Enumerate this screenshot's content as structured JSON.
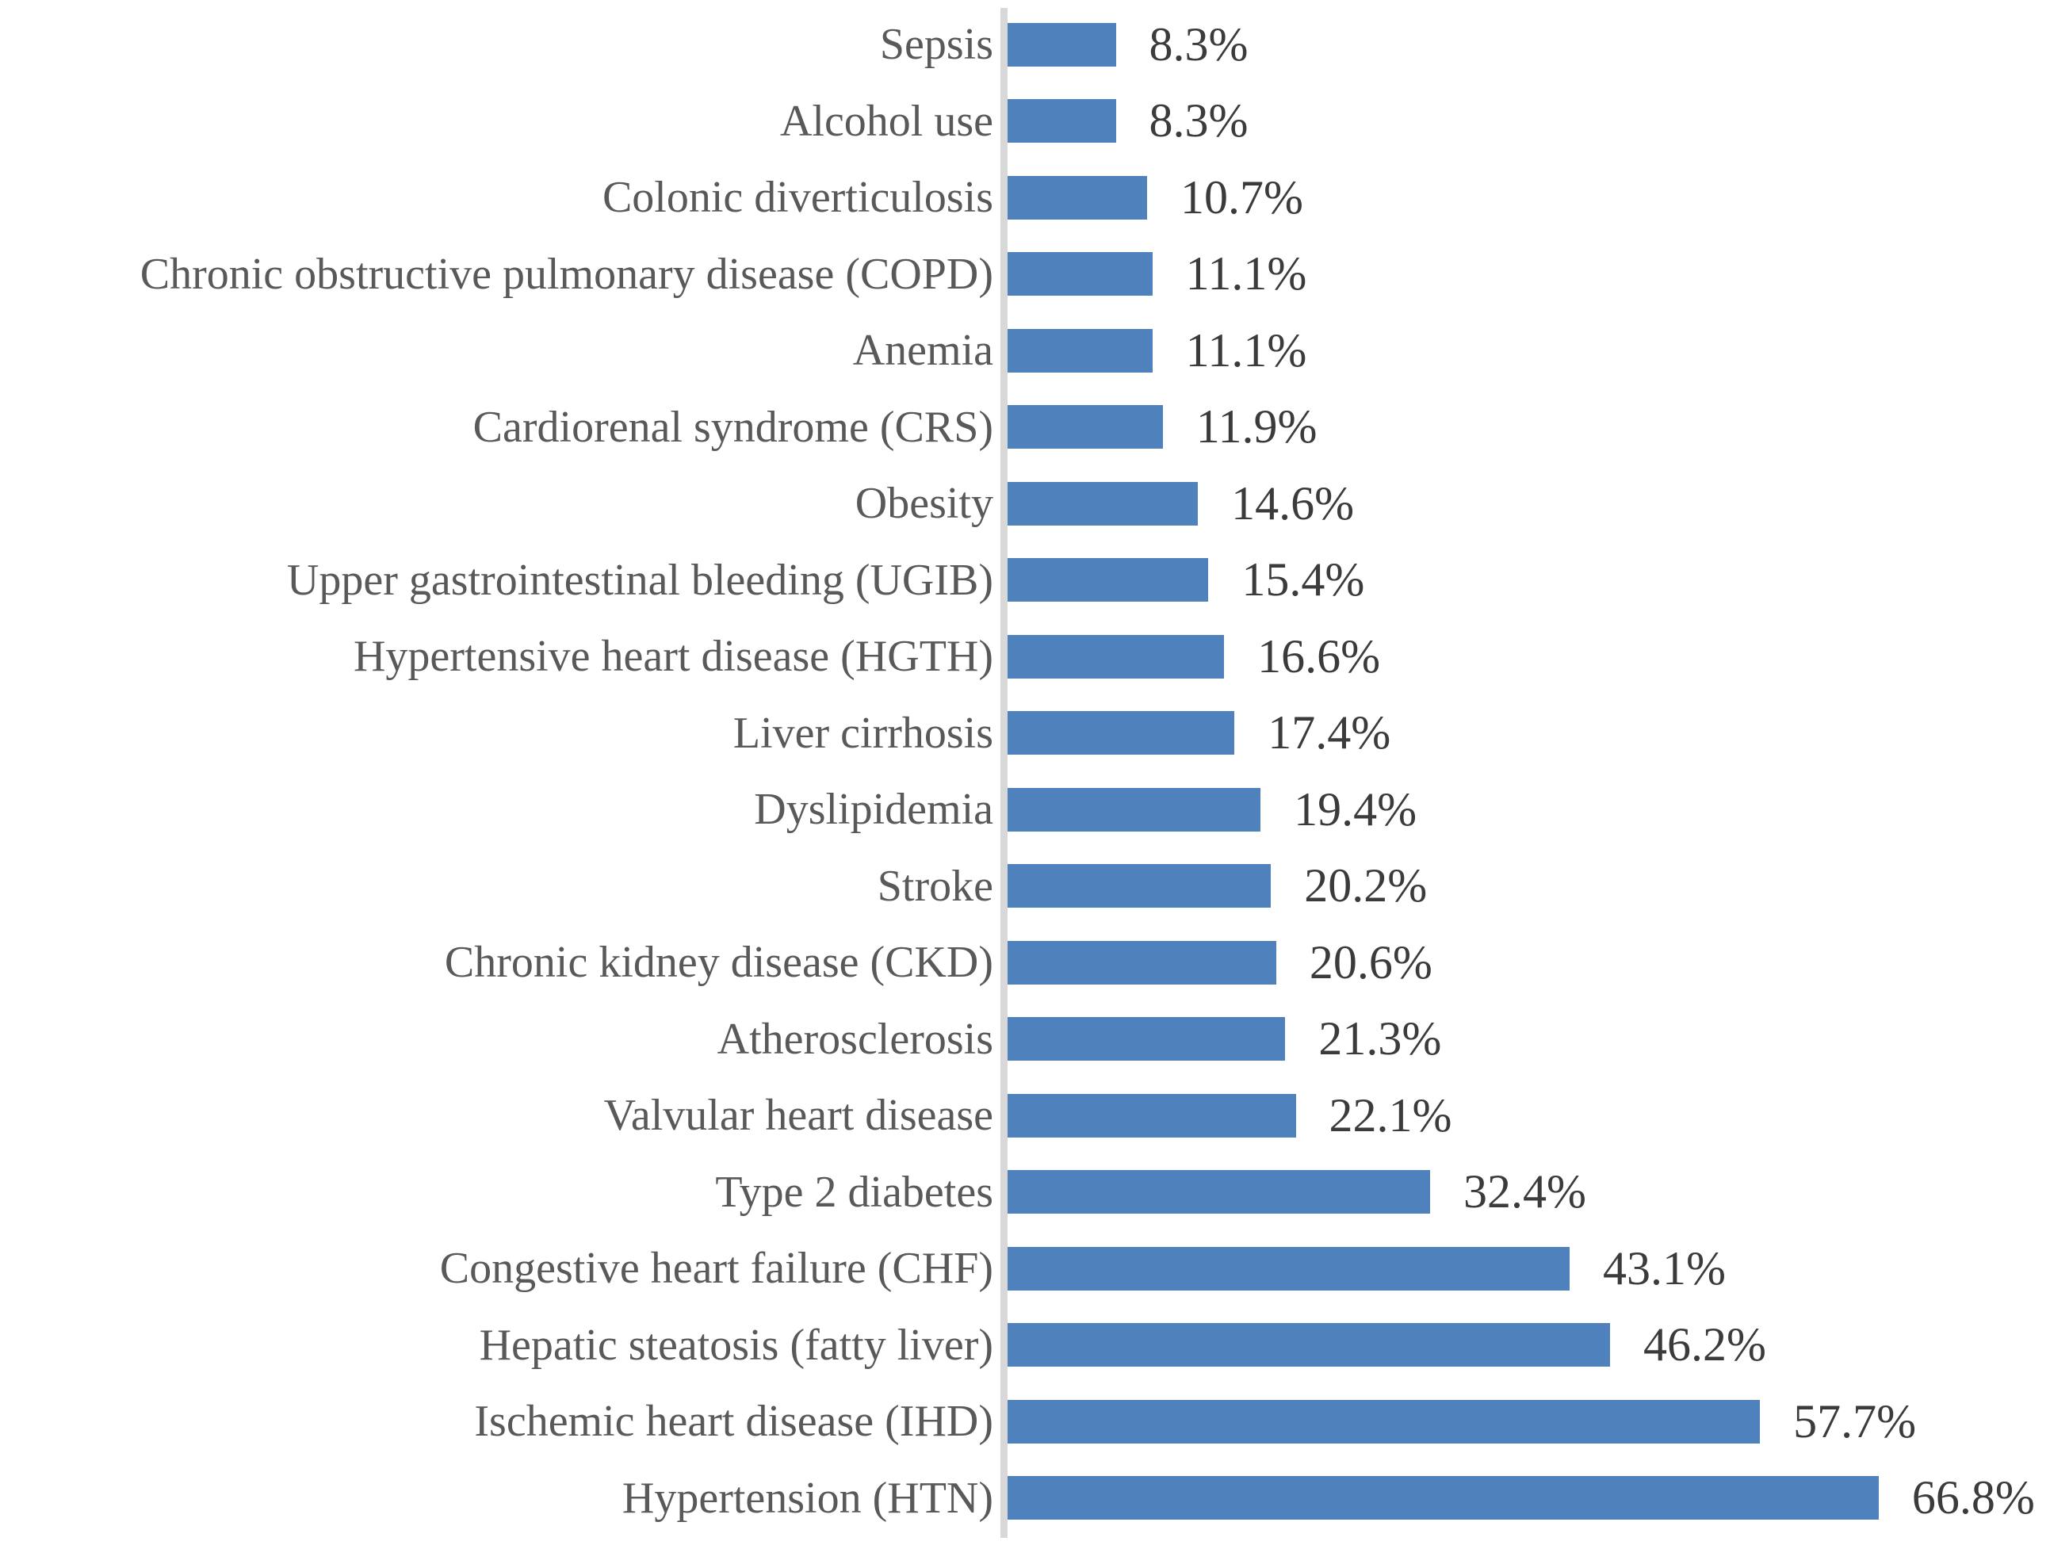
{
  "chart_data": {
    "type": "bar",
    "orientation": "horizontal",
    "title": "",
    "xlabel": "",
    "ylabel": "",
    "xlim": [
      0,
      70
    ],
    "grid": false,
    "legend": false,
    "bar_color": "#4F81BD",
    "axis_line_color": "#D8D8D8",
    "category_label_color": "#595959",
    "value_label_color": "#3B3B3B",
    "categories": [
      "Sepsis",
      "Alcohol use",
      "Colonic diverticulosis",
      "Chronic obstructive pulmonary disease (COPD)",
      "Anemia",
      "Cardiorenal syndrome (CRS)",
      "Obesity",
      "Upper gastrointestinal bleeding (UGIB)",
      "Hypertensive heart disease (HGTH)",
      "Liver cirrhosis",
      "Dyslipidemia",
      "Stroke",
      "Chronic kidney disease (CKD)",
      "Atherosclerosis",
      "Valvular heart disease",
      "Type 2 diabetes",
      "Congestive heart failure (CHF)",
      "Hepatic steatosis (fatty liver)",
      "Ischemic heart disease (IHD)",
      "Hypertension (HTN)"
    ],
    "values": [
      8.3,
      8.3,
      10.7,
      11.1,
      11.1,
      11.9,
      14.6,
      15.4,
      16.6,
      17.4,
      19.4,
      20.2,
      20.6,
      21.3,
      22.1,
      32.4,
      43.1,
      46.2,
      57.7,
      66.8
    ],
    "value_labels": [
      "8.3%",
      "8.3%",
      "10.7%",
      "11.1%",
      "11.1%",
      "11.9%",
      "14.6%",
      "15.4%",
      "16.6%",
      "17.4%",
      "19.4%",
      "20.2%",
      "20.6%",
      "21.3%",
      "22.1%",
      "32.4%",
      "43.1%",
      "46.2%",
      "57.7%",
      "66.8%"
    ]
  }
}
